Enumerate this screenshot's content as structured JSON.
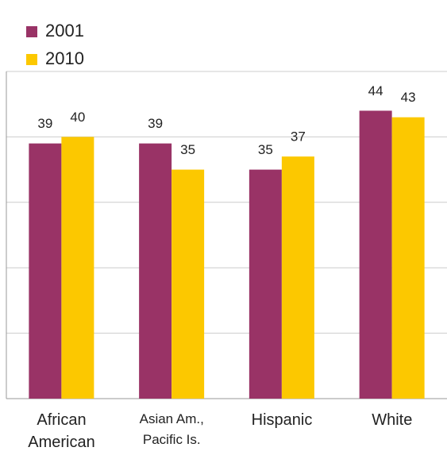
{
  "chart_data": {
    "type": "bar",
    "categories": [
      "African\nAmerican",
      "Asian Am.,\nPacific Is.",
      "Hispanic",
      "White"
    ],
    "series": [
      {
        "name": "2001",
        "color": "#993366",
        "values": [
          39,
          39,
          35,
          44
        ]
      },
      {
        "name": "2010",
        "color": "#fcc800",
        "values": [
          40,
          35,
          37,
          43
        ]
      }
    ],
    "ylim": [
      0,
      50
    ],
    "yticks": [
      0,
      10,
      20,
      30,
      40,
      50
    ],
    "grid": true,
    "legend": "top-left"
  }
}
